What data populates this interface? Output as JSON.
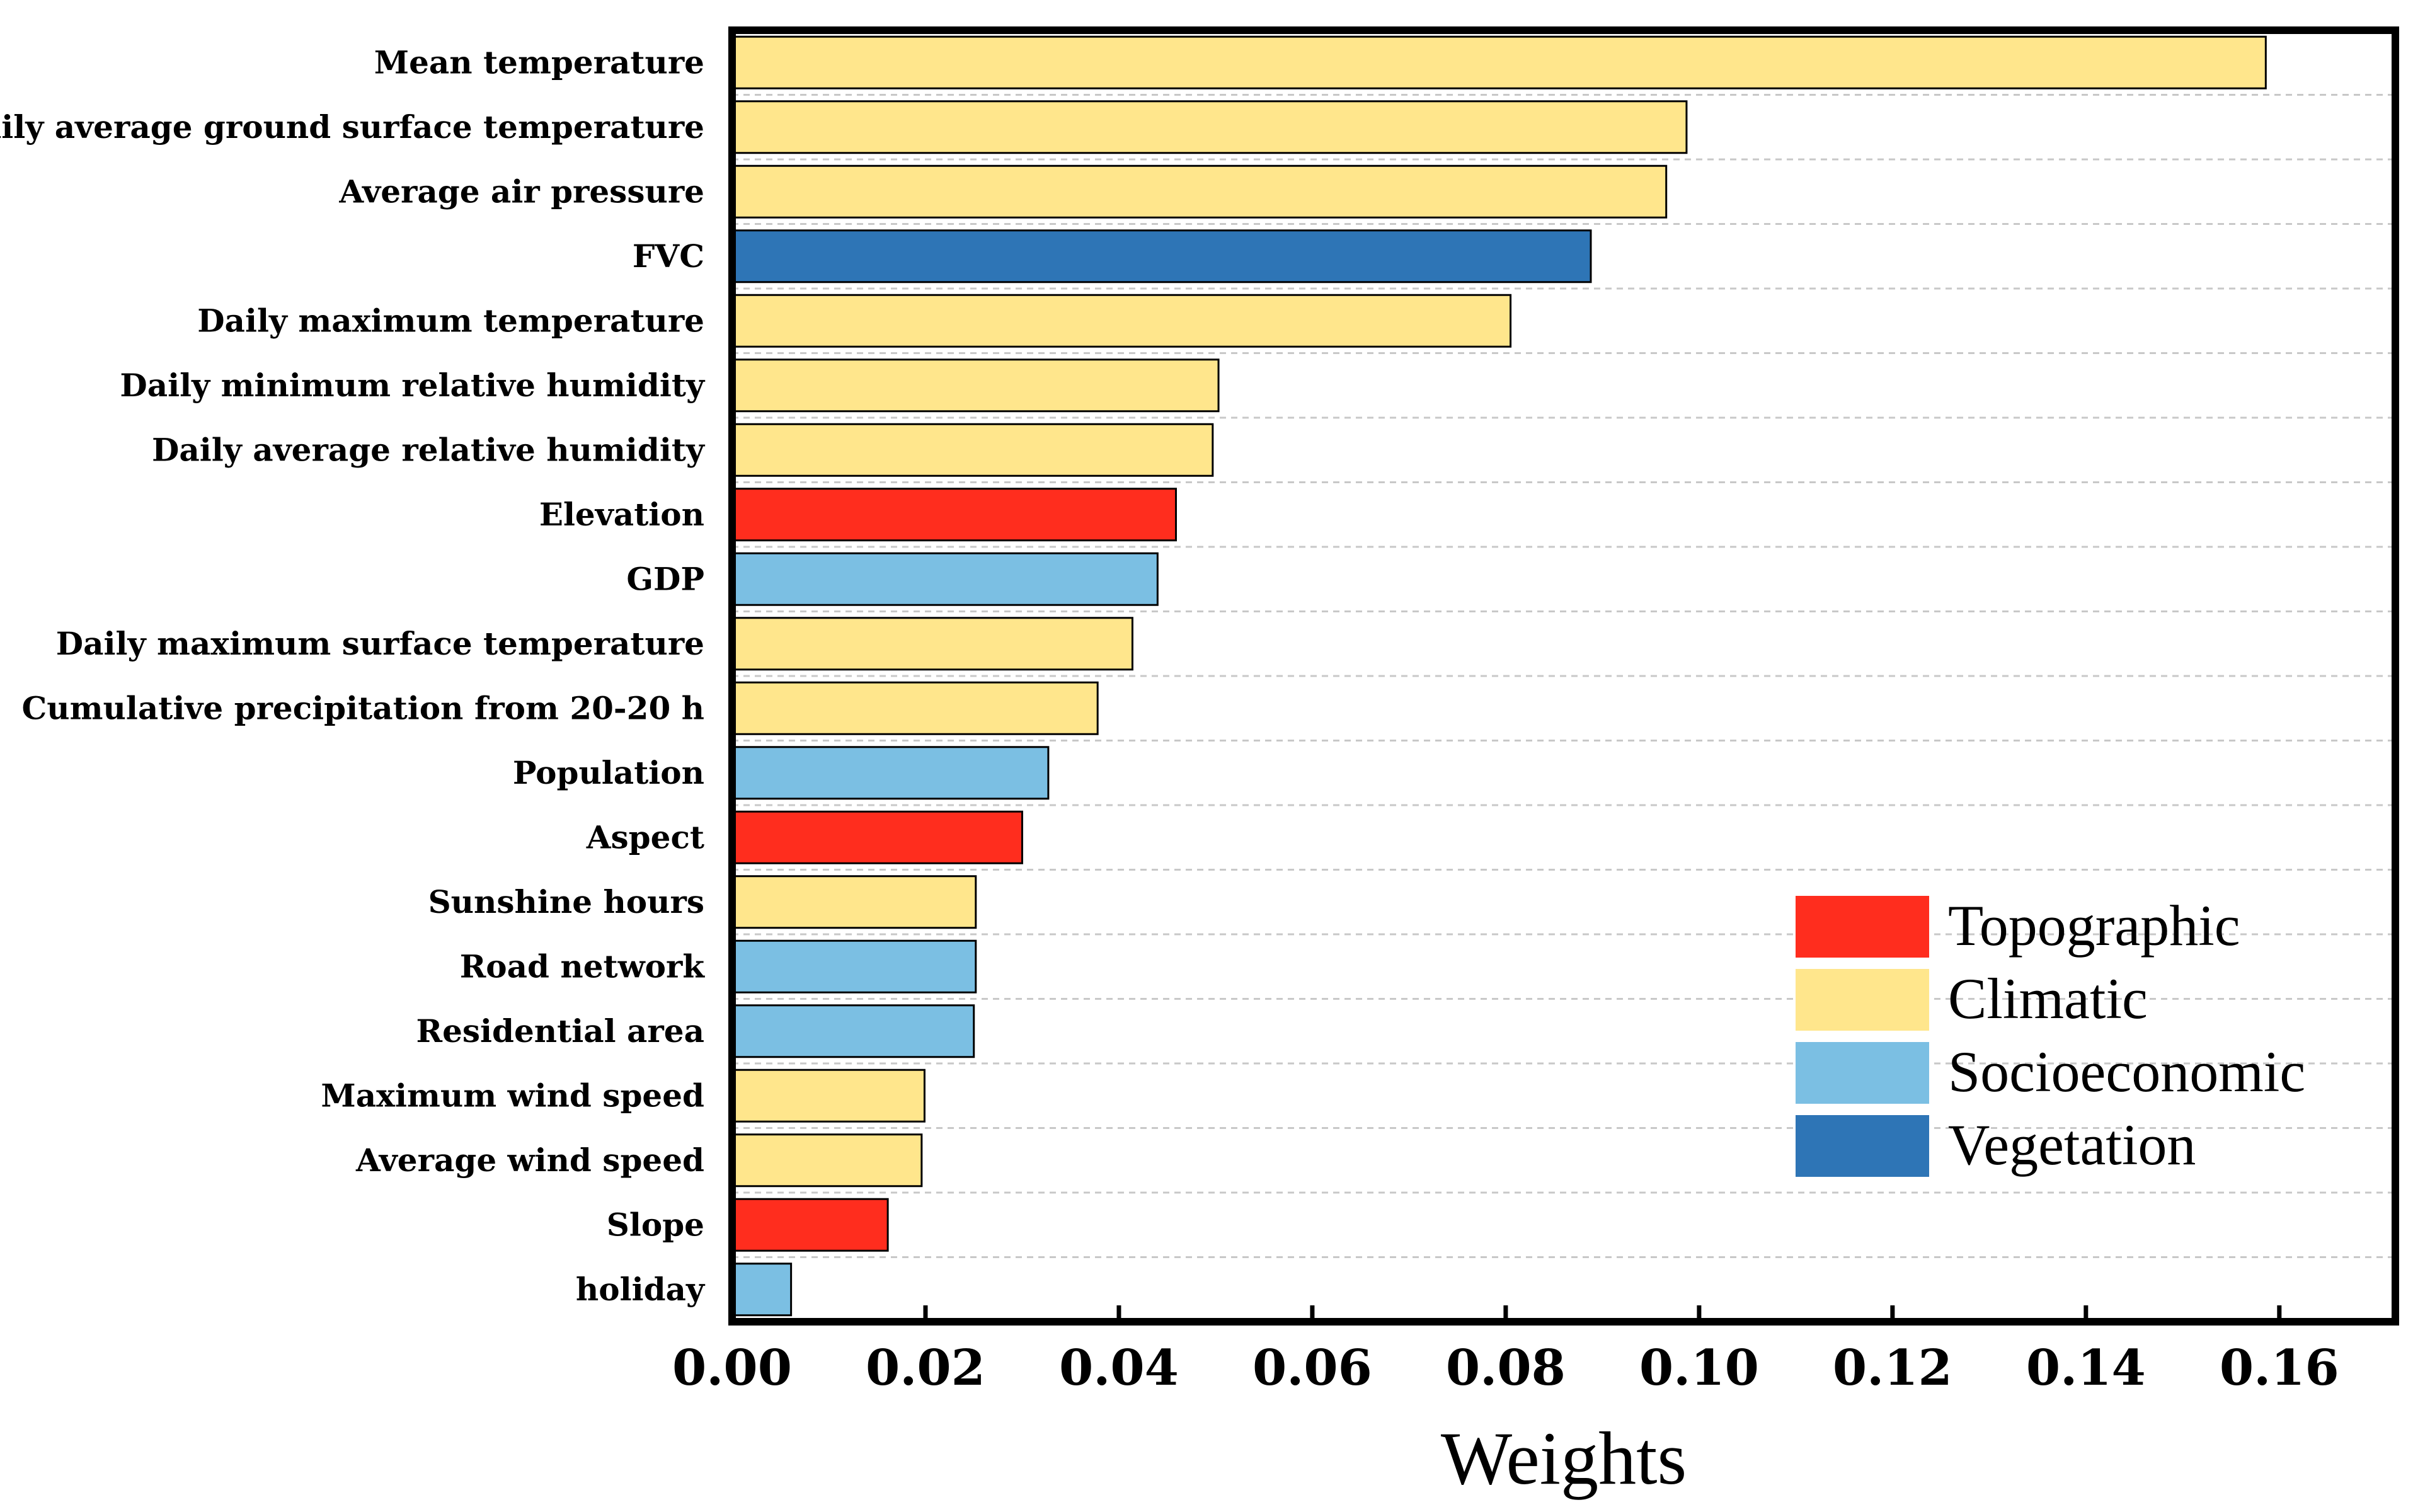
{
  "chart_data": {
    "type": "bar",
    "orientation": "horizontal",
    "xlabel": "Weights",
    "xlim": [
      0,
      0.172
    ],
    "xticks": [
      "0.00",
      "0.02",
      "0.04",
      "0.06",
      "0.08",
      "0.10",
      "0.12",
      "0.14",
      "0.16"
    ],
    "tick_values": [
      0,
      0.02,
      0.04,
      0.06,
      0.08,
      0.1,
      0.12,
      0.14,
      0.16
    ],
    "grid": "horizontal dashed",
    "legend_position": "bottom-right",
    "legend": [
      {
        "name": "Topographic",
        "color": "#ff2d1e"
      },
      {
        "name": "Climatic",
        "color": "#ffe68c"
      },
      {
        "name": "Socioeconomic",
        "color": "#7bbfe3"
      },
      {
        "name": "Vegetation",
        "color": "#2e75b6"
      }
    ],
    "bars": [
      {
        "label": "Mean temperature",
        "value": 0.1586,
        "group": "Climatic"
      },
      {
        "label": "Daily average ground surface temperature",
        "value": 0.0987,
        "group": "Climatic"
      },
      {
        "label": "Average air pressure",
        "value": 0.0966,
        "group": "Climatic"
      },
      {
        "label": "FVC",
        "value": 0.0888,
        "group": "Vegetation"
      },
      {
        "label": "Daily maximum temperature",
        "value": 0.0805,
        "group": "Climatic"
      },
      {
        "label": "Daily minimum relative humidity",
        "value": 0.0503,
        "group": "Climatic"
      },
      {
        "label": "Daily average relative humidity",
        "value": 0.0497,
        "group": "Climatic"
      },
      {
        "label": "Elevation",
        "value": 0.0459,
        "group": "Topographic"
      },
      {
        "label": "GDP",
        "value": 0.044,
        "group": "Socioeconomic"
      },
      {
        "label": "Daily maximum surface temperature",
        "value": 0.0414,
        "group": "Climatic"
      },
      {
        "label": "Cumulative precipitation from 20-20 h",
        "value": 0.0378,
        "group": "Climatic"
      },
      {
        "label": "Population",
        "value": 0.0327,
        "group": "Socioeconomic"
      },
      {
        "label": "Aspect",
        "value": 0.03,
        "group": "Topographic"
      },
      {
        "label": "Sunshine hours",
        "value": 0.0252,
        "group": "Climatic"
      },
      {
        "label": "Road network",
        "value": 0.0252,
        "group": "Socioeconomic"
      },
      {
        "label": "Residential area",
        "value": 0.025,
        "group": "Socioeconomic"
      },
      {
        "label": "Maximum wind speed",
        "value": 0.0199,
        "group": "Climatic"
      },
      {
        "label": "Average wind speed",
        "value": 0.0196,
        "group": "Climatic"
      },
      {
        "label": "Slope",
        "value": 0.0161,
        "group": "Topographic"
      },
      {
        "label": "holiday",
        "value": 0.0061,
        "group": "Socioeconomic"
      }
    ]
  }
}
